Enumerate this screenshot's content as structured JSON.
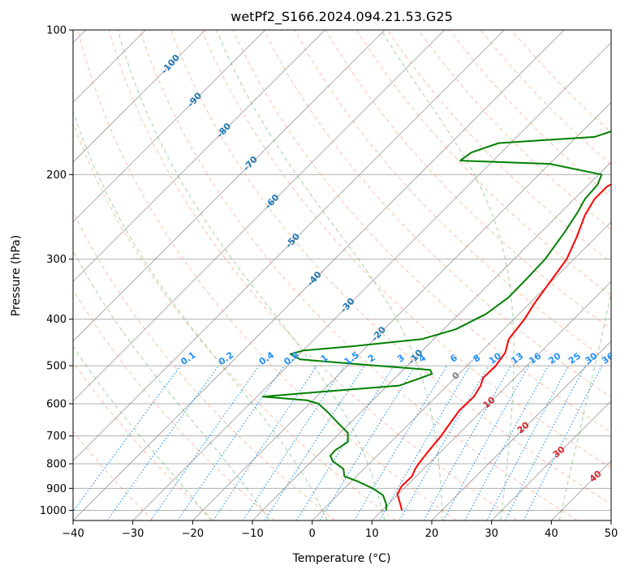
{
  "chart_data": {
    "type": "line",
    "diagram": "skew-t log-p",
    "title": "wetPf2_S166.2024.094.21.53.G25",
    "xlabel": "Temperature (°C)",
    "ylabel": "Pressure (hPa)",
    "xlim": [
      -40,
      50
    ],
    "ylim": [
      1050,
      100
    ],
    "y_scale": "log",
    "x_ticks": [
      -40,
      -30,
      -20,
      -10,
      0,
      10,
      20,
      30,
      40,
      50
    ],
    "y_ticks": [
      100,
      200,
      300,
      400,
      500,
      600,
      700,
      800,
      900,
      1000
    ],
    "grid": true,
    "series": [
      {
        "color": "#ff0000",
        "points": [
          [
            13.3,
            1000
          ],
          [
            11.5,
            960
          ],
          [
            9.8,
            925
          ],
          [
            9.2,
            890
          ],
          [
            9.3,
            850
          ],
          [
            8.6,
            820
          ],
          [
            8.3,
            800
          ],
          [
            7.9,
            760
          ],
          [
            7.4,
            700
          ],
          [
            6.8,
            660
          ],
          [
            6.2,
            620
          ],
          [
            6.3,
            580
          ],
          [
            5.6,
            550
          ],
          [
            4.7,
            530
          ],
          [
            4.8,
            500
          ],
          [
            4.2,
            470
          ],
          [
            2.5,
            440
          ],
          [
            1.8,
            400
          ],
          [
            0.8,
            370
          ],
          [
            -0.3,
            330
          ],
          [
            -1.2,
            300
          ],
          [
            -3.2,
            270
          ],
          [
            -5.5,
            243
          ],
          [
            -6.6,
            225
          ],
          [
            -6.6,
            212
          ],
          [
            -5.0,
            200
          ],
          [
            -2.5,
            193
          ],
          [
            2.0,
            185
          ],
          [
            7.5,
            175
          ],
          [
            11.5,
            163
          ],
          [
            18.5,
            143
          ],
          [
            25.5,
            125
          ],
          [
            30.0,
            112
          ],
          [
            33.5,
            100
          ]
        ]
      },
      {
        "color": "#008000",
        "points": [
          [
            10.7,
            1000
          ],
          [
            9.6,
            970
          ],
          [
            7.6,
            930
          ],
          [
            4.7,
            900
          ],
          [
            1.0,
            870
          ],
          [
            -2.0,
            850
          ],
          [
            -3.4,
            820
          ],
          [
            -6.5,
            790
          ],
          [
            -7.8,
            770
          ],
          [
            -7.9,
            750
          ],
          [
            -7.2,
            720
          ],
          [
            -8.7,
            690
          ],
          [
            -11.8,
            660
          ],
          [
            -15.5,
            625
          ],
          [
            -18.5,
            600
          ],
          [
            -21.0,
            590
          ],
          [
            -29.0,
            580
          ],
          [
            -21.0,
            568
          ],
          [
            -8.0,
            550
          ],
          [
            -4.5,
            520
          ],
          [
            -5.5,
            510
          ],
          [
            -15.0,
            500
          ],
          [
            -29.0,
            485
          ],
          [
            -31.5,
            473
          ],
          [
            -30.0,
            465
          ],
          [
            -22.0,
            455
          ],
          [
            -12.0,
            440
          ],
          [
            -8.0,
            420
          ],
          [
            -5.5,
            390
          ],
          [
            -4.5,
            360
          ],
          [
            -4.6,
            330
          ],
          [
            -4.8,
            300
          ],
          [
            -6.0,
            265
          ],
          [
            -7.2,
            240
          ],
          [
            -8.2,
            225
          ],
          [
            -8.5,
            210
          ],
          [
            -9.5,
            200
          ],
          [
            -20.0,
            190
          ],
          [
            -35.5,
            187
          ],
          [
            -35.0,
            180
          ],
          [
            -32.0,
            172
          ],
          [
            -17.0,
            167
          ],
          [
            -14.0,
            160
          ],
          [
            -13.0,
            150
          ],
          [
            -10.0,
            137
          ],
          [
            -5.0,
            120
          ],
          [
            -3.0,
            110
          ],
          [
            -1.0,
            100
          ]
        ]
      }
    ],
    "isotherm_step": 10,
    "dry_adiabats": [
      -30,
      -20,
      -10,
      0,
      10,
      20,
      30,
      40,
      50,
      60,
      70,
      80,
      90,
      100,
      110,
      120,
      130,
      140,
      150,
      160
    ],
    "moist_adiabats": [
      -20,
      -10,
      0,
      10,
      20,
      30,
      40
    ],
    "mixing_ratios": [
      0.1,
      0.2,
      0.4,
      0.6,
      1,
      1.5,
      2,
      3,
      4,
      6,
      8,
      10,
      13,
      16,
      20,
      25,
      30,
      36
    ],
    "mixing_ratio_labels": [
      "0.1",
      "0.2",
      "0.4",
      "0.6",
      "1",
      "1.5",
      "2",
      "3",
      "4",
      "6",
      "8",
      "10",
      "13",
      "16",
      "20",
      "25",
      "30",
      "36"
    ],
    "isotherm_labels": [
      "-100",
      "-90",
      "-80",
      "-70",
      "-60",
      "-50",
      "-40",
      "-30",
      "-20",
      "-10"
    ],
    "isotherm_label_values": [
      -100,
      -90,
      -80,
      -70,
      -60,
      -50,
      -40,
      -30,
      -20,
      -10
    ],
    "gray_label": "0",
    "red_labels": [
      "10",
      "20",
      "30",
      "40"
    ],
    "red_label_values": [
      10,
      20,
      30,
      40
    ],
    "colors": {
      "temperature": "#ff0000",
      "dewpoint": "#008000",
      "isotherm_label": "#1f77b4",
      "mixing_ratio": "#1e90ff",
      "dry_adiabat": "#ff7f50",
      "moist_adiabat": "#2ca02c",
      "red_label": "#d62728",
      "isotherm": "#999999"
    }
  }
}
